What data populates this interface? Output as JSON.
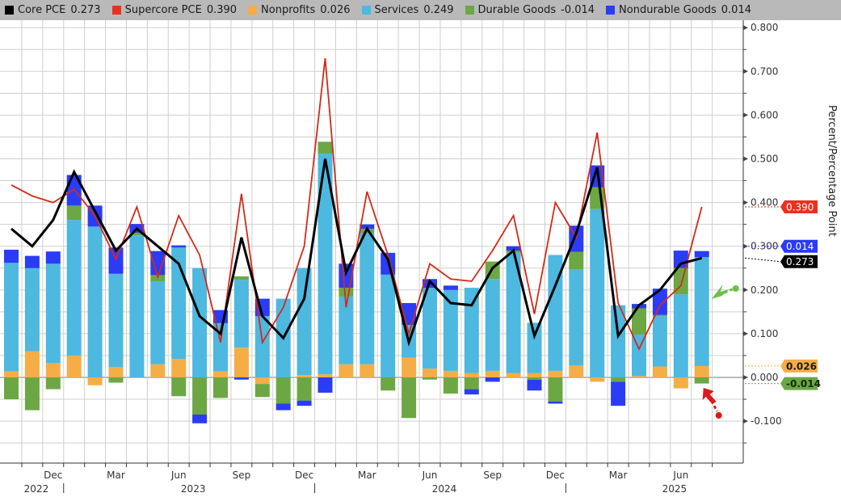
{
  "chart_data": {
    "type": "bar",
    "stacked": true,
    "title": "",
    "xlabel": "",
    "ylabel": "Percent/Percentage Point",
    "ylim": [
      -0.2,
      0.8
    ],
    "yticks": [
      0.8,
      0.7,
      0.6,
      0.5,
      0.4,
      0.3,
      0.2,
      0.1,
      0.0,
      -0.1
    ],
    "ytick_labels": [
      "0.800",
      "0.700",
      "0.600",
      "0.500",
      "0.400",
      "0.300",
      "0.200",
      "0.100",
      "0.000",
      "-0.100"
    ],
    "grid": true,
    "legend_position": "top",
    "categories": [
      "Oct 2022",
      "Nov 2022",
      "Dec 2022",
      "Jan 2023",
      "Feb 2023",
      "Mar 2023",
      "Apr 2023",
      "May 2023",
      "Jun 2023",
      "Jul 2023",
      "Aug 2023",
      "Sep 2023",
      "Oct 2023",
      "Nov 2023",
      "Dec 2023",
      "Jan 2024",
      "Feb 2024",
      "Mar 2024",
      "Apr 2024",
      "May 2024",
      "Jun 2024",
      "Jul 2024",
      "Aug 2024",
      "Sep 2024",
      "Oct 2024",
      "Nov 2024",
      "Dec 2024",
      "Jan 2025",
      "Feb 2025",
      "Mar 2025",
      "Apr 2025",
      "May 2025",
      "Jun 2025",
      "Jul 2025"
    ],
    "x_tick_labels": [
      {
        "month_index": 2,
        "label": "Dec"
      },
      {
        "month_index": 5,
        "label": "Mar"
      },
      {
        "month_index": 8,
        "label": "Jun"
      },
      {
        "month_index": 11,
        "label": "Sep"
      },
      {
        "month_index": 14,
        "label": "Dec"
      },
      {
        "month_index": 17,
        "label": "Mar"
      },
      {
        "month_index": 20,
        "label": "Jun"
      },
      {
        "month_index": 23,
        "label": "Sep"
      },
      {
        "month_index": 26,
        "label": "Dec"
      },
      {
        "month_index": 29,
        "label": "Mar"
      },
      {
        "month_index": 32,
        "label": "Jun"
      }
    ],
    "year_labels": [
      {
        "month_index": 0.5,
        "label": "2022"
      },
      {
        "month_index": 8,
        "label": "2023"
      },
      {
        "month_index": 20,
        "label": "2024"
      },
      {
        "month_index": 31,
        "label": "2025"
      }
    ],
    "year_dividers": [
      2.5,
      14.5,
      26.5
    ],
    "bar_series": [
      {
        "name": "Nonprofits",
        "color": "#f5ad45",
        "values": [
          0.014,
          0.06,
          0.033,
          0.05,
          -0.018,
          0.024,
          0.0,
          0.03,
          0.042,
          0.0,
          0.014,
          0.068,
          -0.015,
          0.0,
          0.005,
          0.007,
          0.03,
          0.03,
          0.0,
          0.045,
          0.02,
          0.015,
          0.01,
          0.015,
          0.01,
          0.01,
          0.015,
          0.027,
          -0.01,
          0.0,
          0.003,
          0.025,
          -0.025,
          0.026
        ]
      },
      {
        "name": "Services",
        "color": "#4db8e0",
        "values": [
          0.248,
          0.19,
          0.227,
          0.31,
          0.345,
          0.213,
          0.325,
          0.19,
          0.255,
          0.25,
          0.11,
          0.155,
          0.14,
          0.18,
          0.245,
          0.505,
          0.155,
          0.3,
          0.235,
          0.075,
          0.185,
          0.185,
          0.195,
          0.21,
          0.275,
          0.115,
          0.265,
          0.22,
          0.385,
          0.165,
          0.095,
          0.115,
          0.19,
          0.249
        ]
      },
      {
        "name": "Durable Goods",
        "color": "#6ca744",
        "values": [
          -0.05,
          -0.075,
          -0.027,
          0.033,
          0.0,
          -0.012,
          0.006,
          0.014,
          -0.043,
          -0.085,
          -0.047,
          0.008,
          -0.03,
          -0.06,
          -0.053,
          0.027,
          0.02,
          0.01,
          -0.03,
          -0.093,
          -0.005,
          -0.037,
          -0.027,
          0.04,
          0.005,
          -0.005,
          -0.055,
          0.04,
          0.05,
          -0.01,
          0.06,
          0.003,
          0.06,
          -0.014
        ]
      },
      {
        "name": "Nondurable Goods",
        "color": "#2a3cf5",
        "values": [
          0.03,
          0.028,
          0.028,
          0.07,
          0.048,
          0.06,
          0.02,
          0.055,
          0.005,
          -0.02,
          0.03,
          -0.005,
          0.04,
          -0.015,
          -0.012,
          -0.035,
          0.055,
          0.01,
          0.05,
          0.05,
          0.02,
          0.01,
          -0.012,
          -0.01,
          0.01,
          -0.025,
          -0.005,
          0.06,
          0.05,
          -0.055,
          0.01,
          0.06,
          0.04,
          0.014
        ]
      }
    ],
    "line_series": [
      {
        "name": "Core PCE",
        "color": "#000000",
        "values": [
          0.34,
          0.3,
          0.36,
          0.47,
          0.38,
          0.29,
          0.34,
          0.3,
          0.26,
          0.14,
          0.1,
          0.32,
          0.14,
          0.09,
          0.18,
          0.5,
          0.24,
          0.34,
          0.27,
          0.08,
          0.22,
          0.17,
          0.165,
          0.25,
          0.29,
          0.095,
          0.21,
          0.33,
          0.48,
          0.095,
          0.165,
          0.2,
          0.26,
          0.273
        ]
      },
      {
        "name": "Supercore PCE",
        "color": "#d42a1a",
        "values": [
          0.44,
          0.415,
          0.4,
          0.43,
          0.37,
          0.27,
          0.39,
          0.23,
          0.37,
          0.28,
          0.08,
          0.42,
          0.08,
          0.16,
          0.3,
          0.73,
          0.16,
          0.425,
          0.28,
          0.1,
          0.26,
          0.225,
          0.22,
          0.29,
          0.37,
          0.145,
          0.4,
          0.32,
          0.56,
          0.17,
          0.065,
          0.165,
          0.21,
          0.39
        ]
      }
    ],
    "end_tags": [
      {
        "series": "Supercore PCE",
        "label": "0.390",
        "value": 0.39,
        "bg": "#e8321e",
        "fg": "#ffffff"
      },
      {
        "series": "Nondurable Goods",
        "label": "0.014",
        "value": 0.3,
        "bg": "#2a3cf5",
        "fg": "#ffffff"
      },
      {
        "series": "Core PCE",
        "label": "0.273",
        "value": 0.273,
        "bg": "#000000",
        "fg": "#ffffff"
      },
      {
        "series": "Nonprofits",
        "label": "0.026",
        "value": 0.026,
        "bg": "#f5ad45",
        "fg": "#1a1a1a"
      },
      {
        "series": "Durable Goods",
        "label": "-0.014",
        "value": -0.014,
        "bg": "#6ca744",
        "fg": "#0b2a05"
      }
    ]
  },
  "legend": {
    "items": [
      {
        "name": "Core PCE",
        "value": "0.273",
        "color": "#000000"
      },
      {
        "name": "Supercore PCE",
        "value": "0.390",
        "color": "#e8321e"
      },
      {
        "name": "Nonprofits",
        "value": "0.026",
        "color": "#f5ad45"
      },
      {
        "name": "Services",
        "value": "0.249",
        "color": "#4db8e0"
      },
      {
        "name": "Durable Goods",
        "value": "-0.014",
        "color": "#6ca744"
      },
      {
        "name": "Nondurable Goods",
        "value": "0.014",
        "color": "#2a3cf5"
      }
    ]
  },
  "annotations": [
    {
      "name": "green-arrow",
      "color": "#6cc04a",
      "points_to": "Services Jul 2025"
    },
    {
      "name": "red-arrow",
      "color": "#dd1a1a",
      "points_to": "Durable Goods Jul 2025"
    }
  ]
}
